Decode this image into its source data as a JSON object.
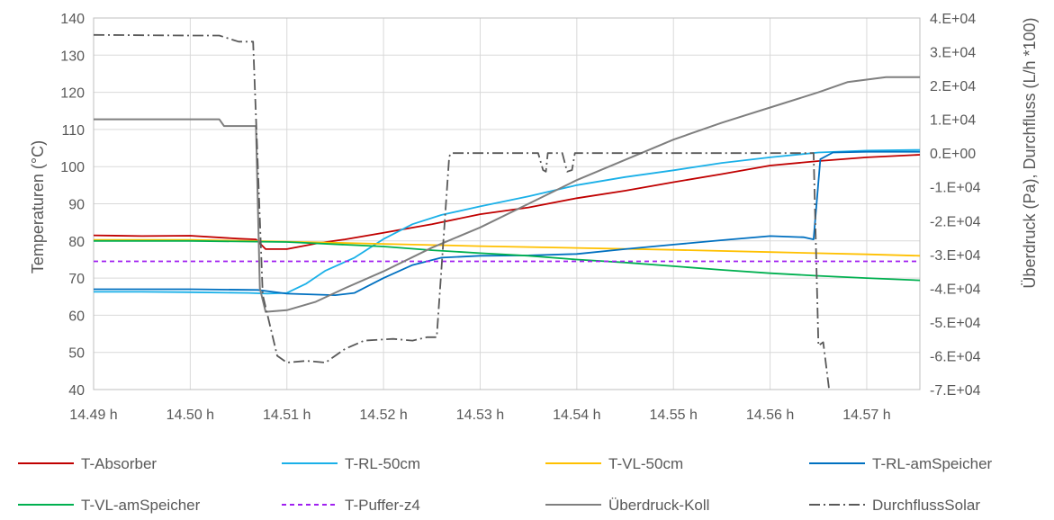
{
  "chart_data": {
    "type": "line",
    "title": "",
    "xlabel": "",
    "ylabel": "Temperaturen (°C)",
    "y2label": "Überdruck (Pa), Durchfluss (L/h *100)",
    "xlim": [
      14.49,
      14.5755
    ],
    "ylim": [
      40,
      140
    ],
    "y2lim": [
      -70000,
      40000
    ],
    "grid": true,
    "legend_position": "bottom",
    "x_ticks": [
      14.49,
      14.5,
      14.51,
      14.52,
      14.53,
      14.54,
      14.55,
      14.56,
      14.57
    ],
    "x_tick_labels": [
      "14.49 h",
      "14.50 h",
      "14.51 h",
      "14.52 h",
      "14.53 h",
      "14.54 h",
      "14.55 h",
      "14.56 h",
      "14.57 h"
    ],
    "y_ticks": [
      40,
      50,
      60,
      70,
      80,
      90,
      100,
      110,
      120,
      130,
      140
    ],
    "y_tick_labels": [
      "40",
      "50",
      "60",
      "70",
      "80",
      "90",
      "100",
      "110",
      "120",
      "130",
      "140"
    ],
    "y2_ticks": [
      -70000,
      -60000,
      -50000,
      -40000,
      -30000,
      -20000,
      -10000,
      0,
      10000,
      20000,
      30000,
      40000
    ],
    "y2_tick_labels": [
      "-7.E+04",
      "-6.E+04",
      "-5.E+04",
      "-4.E+04",
      "-3.E+04",
      "-2.E+04",
      "-1.E+04",
      "0.E+00",
      "1.E+04",
      "2.E+04",
      "3.E+04",
      "4.E+04"
    ],
    "series": [
      {
        "name": "T-Absorber",
        "color": "#c00000",
        "axis": "left",
        "dash": "solid",
        "points": [
          [
            14.49,
            81.5
          ],
          [
            14.495,
            81.3
          ],
          [
            14.5,
            81.4
          ],
          [
            14.505,
            80.6
          ],
          [
            14.5068,
            80.4
          ],
          [
            14.5078,
            77.8
          ],
          [
            14.51,
            77.8
          ],
          [
            14.513,
            79.3
          ],
          [
            14.516,
            80.4
          ],
          [
            14.52,
            82.2
          ],
          [
            14.525,
            84.5
          ],
          [
            14.53,
            87.2
          ],
          [
            14.535,
            89.0
          ],
          [
            14.54,
            91.5
          ],
          [
            14.545,
            93.5
          ],
          [
            14.55,
            95.8
          ],
          [
            14.555,
            98.0
          ],
          [
            14.56,
            100.3
          ],
          [
            14.565,
            101.5
          ],
          [
            14.57,
            102.5
          ],
          [
            14.5755,
            103.2
          ]
        ]
      },
      {
        "name": "T-RL-50cm",
        "color": "#1ab0e8",
        "axis": "left",
        "dash": "solid",
        "points": [
          [
            14.49,
            66.3
          ],
          [
            14.495,
            66.3
          ],
          [
            14.5,
            66.2
          ],
          [
            14.506,
            66.0
          ],
          [
            14.508,
            65.8
          ],
          [
            14.51,
            66.0
          ],
          [
            14.512,
            68.5
          ],
          [
            14.514,
            72.0
          ],
          [
            14.517,
            75.5
          ],
          [
            14.52,
            80.5
          ],
          [
            14.523,
            84.5
          ],
          [
            14.526,
            87.0
          ],
          [
            14.53,
            89.3
          ],
          [
            14.535,
            92.0
          ],
          [
            14.54,
            95.0
          ],
          [
            14.545,
            97.2
          ],
          [
            14.55,
            99.0
          ],
          [
            14.555,
            101.0
          ],
          [
            14.56,
            102.5
          ],
          [
            14.565,
            103.8
          ],
          [
            14.57,
            104.3
          ],
          [
            14.5755,
            104.5
          ]
        ]
      },
      {
        "name": "T-VL-50cm",
        "color": "#ffc000",
        "axis": "left",
        "dash": "solid",
        "points": [
          [
            14.49,
            80.3
          ],
          [
            14.5,
            80.3
          ],
          [
            14.51,
            79.8
          ],
          [
            14.52,
            79.2
          ],
          [
            14.53,
            78.6
          ],
          [
            14.54,
            78.1
          ],
          [
            14.55,
            77.6
          ],
          [
            14.56,
            77.0
          ],
          [
            14.57,
            76.4
          ],
          [
            14.5755,
            76.0
          ]
        ]
      },
      {
        "name": "T-RL-amSpeicher",
        "color": "#0070c0",
        "axis": "left",
        "dash": "solid",
        "points": [
          [
            14.49,
            67.0
          ],
          [
            14.5,
            67.0
          ],
          [
            14.507,
            66.8
          ],
          [
            14.51,
            65.8
          ],
          [
            14.515,
            65.4
          ],
          [
            14.517,
            66.0
          ],
          [
            14.52,
            70.0
          ],
          [
            14.523,
            73.5
          ],
          [
            14.526,
            75.5
          ],
          [
            14.53,
            76.0
          ],
          [
            14.535,
            76.1
          ],
          [
            14.54,
            76.5
          ],
          [
            14.545,
            77.8
          ],
          [
            14.55,
            79.0
          ],
          [
            14.555,
            80.2
          ],
          [
            14.56,
            81.3
          ],
          [
            14.5635,
            81.0
          ],
          [
            14.5645,
            80.4
          ],
          [
            14.5652,
            102.0
          ],
          [
            14.5665,
            103.8
          ],
          [
            14.57,
            104.0
          ],
          [
            14.5755,
            104.0
          ]
        ]
      },
      {
        "name": "T-VL-amSpeicher",
        "color": "#00b050",
        "axis": "left",
        "dash": "solid",
        "points": [
          [
            14.49,
            80.0
          ],
          [
            14.5,
            80.0
          ],
          [
            14.51,
            79.7
          ],
          [
            14.52,
            78.5
          ],
          [
            14.525,
            77.5
          ],
          [
            14.53,
            76.7
          ],
          [
            14.535,
            76.0
          ],
          [
            14.54,
            75.0
          ],
          [
            14.545,
            74.2
          ],
          [
            14.55,
            73.2
          ],
          [
            14.555,
            72.2
          ],
          [
            14.56,
            71.3
          ],
          [
            14.565,
            70.6
          ],
          [
            14.57,
            70.0
          ],
          [
            14.5755,
            69.4
          ]
        ]
      },
      {
        "name": "T-Puffer-z4",
        "color": "#a020f0",
        "axis": "left",
        "dash": "dashed",
        "points": [
          [
            14.49,
            74.5
          ],
          [
            14.5755,
            74.5
          ]
        ]
      },
      {
        "name": "Überdruck-Koll",
        "color": "#7f7f7f",
        "axis": "right",
        "dash": "solid",
        "points": [
          [
            14.49,
            10000
          ],
          [
            14.503,
            10000
          ],
          [
            14.5035,
            8000
          ],
          [
            14.5068,
            8000
          ],
          [
            14.5072,
            -40000
          ],
          [
            14.5078,
            -47000
          ],
          [
            14.51,
            -46500
          ],
          [
            14.513,
            -44000
          ],
          [
            14.516,
            -40000
          ],
          [
            14.52,
            -35000
          ],
          [
            14.525,
            -28000
          ],
          [
            14.53,
            -22000
          ],
          [
            14.535,
            -15000
          ],
          [
            14.54,
            -8000
          ],
          [
            14.545,
            -2000
          ],
          [
            14.55,
            4000
          ],
          [
            14.555,
            9000
          ],
          [
            14.56,
            13500
          ],
          [
            14.565,
            18000
          ],
          [
            14.568,
            21000
          ],
          [
            14.572,
            22500
          ],
          [
            14.5755,
            22500
          ]
        ]
      },
      {
        "name": "DurchflussSolar",
        "color": "#595959",
        "axis": "right",
        "dash": "dashdot",
        "points": [
          [
            14.49,
            35000
          ],
          [
            14.5,
            34800
          ],
          [
            14.503,
            34800
          ],
          [
            14.505,
            33000
          ],
          [
            14.5065,
            33000
          ],
          [
            14.5075,
            -42000
          ],
          [
            14.509,
            -60000
          ],
          [
            14.51,
            -62000
          ],
          [
            14.512,
            -61500
          ],
          [
            14.514,
            -62000
          ],
          [
            14.516,
            -58000
          ],
          [
            14.518,
            -55500
          ],
          [
            14.521,
            -55000
          ],
          [
            14.523,
            -55500
          ],
          [
            14.5245,
            -54500
          ],
          [
            14.5255,
            -54500
          ],
          [
            14.5268,
            -1000
          ],
          [
            14.527,
            0
          ],
          [
            14.536,
            0
          ],
          [
            14.5365,
            -5000
          ],
          [
            14.5368,
            -5500
          ],
          [
            14.537,
            0
          ],
          [
            14.5385,
            0
          ],
          [
            14.539,
            -5500
          ],
          [
            14.5395,
            -5000
          ],
          [
            14.5398,
            0
          ],
          [
            14.5645,
            0
          ],
          [
            14.565,
            -57000
          ],
          [
            14.5655,
            -56000
          ],
          [
            14.5662,
            -72000
          ]
        ]
      }
    ]
  }
}
